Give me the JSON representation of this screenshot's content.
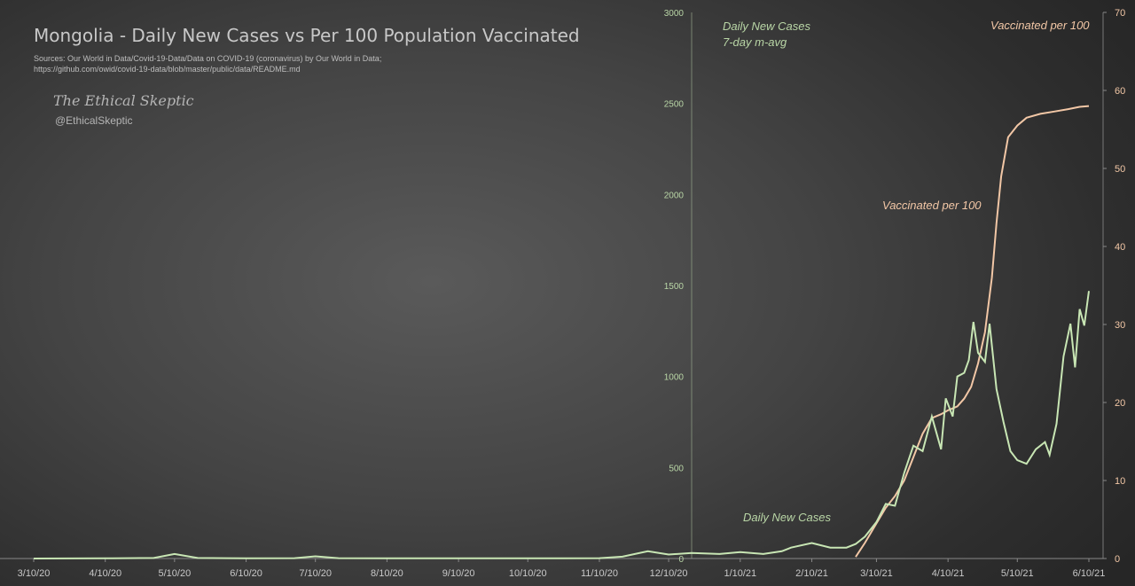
{
  "header": {
    "title": "Mongolia - Daily New Cases vs Per 100 Population Vaccinated",
    "sources_line1": "Sources: Our World in Data/Covid-19-Data/Data on COVID-19 (coronavirus) by Our World in Data;",
    "sources_line2": "https://github.com/owid/covid-19-data/blob/master/public/data/README.md",
    "brand": "The Ethical Skeptic",
    "handle": "@EthicalSkeptic"
  },
  "colors": {
    "cases": "#c8e6b4",
    "vaccinated": "#f2c7a6",
    "left_axis_text": "#b9d6a6",
    "right_axis_text": "#f2c7a6",
    "divider": "#9aab8e"
  },
  "chart_data": {
    "type": "line",
    "x_ticks": [
      "3/10/20",
      "4/10/20",
      "5/10/20",
      "6/10/20",
      "7/10/20",
      "8/10/20",
      "9/10/20",
      "10/10/20",
      "11/10/20",
      "12/10/20",
      "1/10/21",
      "2/10/21",
      "3/10/21",
      "4/10/21",
      "5/10/21",
      "6/10/21"
    ],
    "y_left": {
      "range": [
        0,
        3000
      ],
      "ticks": [
        "0",
        "500",
        "1000",
        "1500",
        "2000",
        "2500",
        "3000"
      ]
    },
    "y_right": {
      "range": [
        0,
        70
      ],
      "ticks": [
        "0",
        "10",
        "20",
        "30",
        "40",
        "50",
        "60",
        "70"
      ]
    },
    "annotations": {
      "cases_top_line1": "Daily New Cases",
      "cases_top_line2": "7-day m-avg",
      "cases_bottom": "Daily New Cases",
      "vacc_top": "Vaccinated per 100",
      "vacc_mid": "Vaccinated per 100"
    },
    "series": [
      {
        "axis": "left",
        "points": [
          [
            "3/10/20",
            0
          ],
          [
            "4/10/20",
            1
          ],
          [
            "5/1/20",
            3
          ],
          [
            "5/10/20",
            25
          ],
          [
            "5/20/20",
            3
          ],
          [
            "6/10/20",
            1
          ],
          [
            "7/1/20",
            2
          ],
          [
            "7/10/20",
            12
          ],
          [
            "7/20/20",
            2
          ],
          [
            "8/10/20",
            1
          ],
          [
            "9/10/20",
            1
          ],
          [
            "10/10/20",
            1
          ],
          [
            "11/10/20",
            2
          ],
          [
            "11/20/20",
            10
          ],
          [
            "12/1/20",
            40
          ],
          [
            "12/10/20",
            22
          ],
          [
            "12/20/20",
            30
          ],
          [
            "1/1/21",
            25
          ],
          [
            "1/10/21",
            35
          ],
          [
            "1/20/21",
            25
          ],
          [
            "1/28/21",
            40
          ],
          [
            "2/1/21",
            60
          ],
          [
            "2/10/21",
            85
          ],
          [
            "2/18/21",
            60
          ],
          [
            "2/25/21",
            60
          ],
          [
            "3/1/21",
            80
          ],
          [
            "3/5/21",
            120
          ],
          [
            "3/10/21",
            200
          ],
          [
            "3/14/21",
            300
          ],
          [
            "3/18/21",
            290
          ],
          [
            "3/22/21",
            470
          ],
          [
            "3/26/21",
            620
          ],
          [
            "3/30/21",
            590
          ],
          [
            "4/3/21",
            780
          ],
          [
            "4/7/21",
            600
          ],
          [
            "4/9/21",
            880
          ],
          [
            "4/12/21",
            780
          ],
          [
            "4/14/21",
            1000
          ],
          [
            "4/17/21",
            1020
          ],
          [
            "4/19/21",
            1090
          ],
          [
            "4/21/21",
            1300
          ],
          [
            "4/23/21",
            1130
          ],
          [
            "4/26/21",
            1080
          ],
          [
            "4/28/21",
            1290
          ],
          [
            "5/1/21",
            930
          ],
          [
            "5/4/21",
            750
          ],
          [
            "5/7/21",
            590
          ],
          [
            "5/10/21",
            540
          ],
          [
            "5/14/21",
            520
          ],
          [
            "5/18/21",
            600
          ],
          [
            "5/22/21",
            640
          ],
          [
            "5/24/21",
            570
          ],
          [
            "5/27/21",
            740
          ],
          [
            "5/30/21",
            1110
          ],
          [
            "6/2/21",
            1290
          ],
          [
            "6/4/21",
            1050
          ],
          [
            "6/6/21",
            1370
          ],
          [
            "6/8/21",
            1280
          ],
          [
            "6/10/21",
            1470
          ]
        ]
      },
      {
        "axis": "right",
        "points": [
          [
            "3/1/21",
            0.2
          ],
          [
            "3/5/21",
            2
          ],
          [
            "3/10/21",
            4.5
          ],
          [
            "3/14/21",
            6.5
          ],
          [
            "3/18/21",
            8
          ],
          [
            "3/22/21",
            10
          ],
          [
            "3/26/21",
            13
          ],
          [
            "3/30/21",
            16
          ],
          [
            "4/3/21",
            18
          ],
          [
            "4/7/21",
            18.5
          ],
          [
            "4/10/21",
            19
          ],
          [
            "4/14/21",
            19.5
          ],
          [
            "4/17/21",
            20.5
          ],
          [
            "4/20/21",
            22
          ],
          [
            "4/23/21",
            25
          ],
          [
            "4/26/21",
            29
          ],
          [
            "4/29/21",
            36
          ],
          [
            "5/1/21",
            43
          ],
          [
            "5/3/21",
            49
          ],
          [
            "5/6/21",
            54
          ],
          [
            "5/10/21",
            55.5
          ],
          [
            "5/14/21",
            56.5
          ],
          [
            "5/20/21",
            57
          ],
          [
            "5/26/21",
            57.3
          ],
          [
            "6/1/21",
            57.6
          ],
          [
            "6/6/21",
            57.9
          ],
          [
            "6/10/21",
            58
          ]
        ]
      }
    ]
  }
}
